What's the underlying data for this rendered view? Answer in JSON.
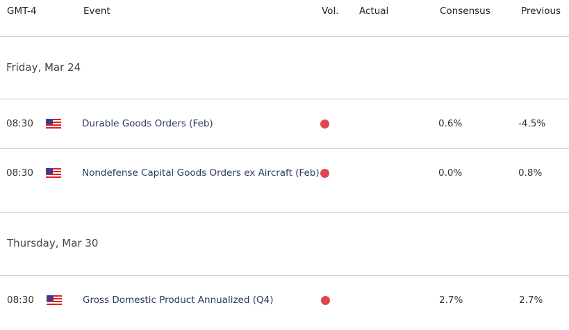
{
  "header": {
    "timezone": "GMT-4",
    "event": "Event",
    "vol": "Vol.",
    "actual": "Actual",
    "consensus": "Consensus",
    "previous": "Previous"
  },
  "colors": {
    "high_volatility": "#e0474c",
    "event_text": "#2b3a67"
  },
  "groups": [
    {
      "date": "Friday, Mar 24",
      "events": [
        {
          "time": "08:30",
          "country": "us-flag-icon",
          "event": "Durable Goods Orders (Feb)",
          "volatility": "high",
          "actual": "",
          "consensus": "0.6%",
          "previous": "-4.5%"
        },
        {
          "time": "08:30",
          "country": "us-flag-icon",
          "event": "Nondefense Capital Goods Orders ex Aircraft (Feb)",
          "volatility": "high",
          "actual": "",
          "consensus": "0.0%",
          "previous": "0.8%"
        }
      ]
    },
    {
      "date": "Thursday, Mar 30",
      "events": [
        {
          "time": "08:30",
          "country": "us-flag-icon",
          "event": "Gross Domestic Product Annualized (Q4)",
          "volatility": "high",
          "actual": "",
          "consensus": "2.7%",
          "previous": "2.7%"
        }
      ]
    }
  ]
}
